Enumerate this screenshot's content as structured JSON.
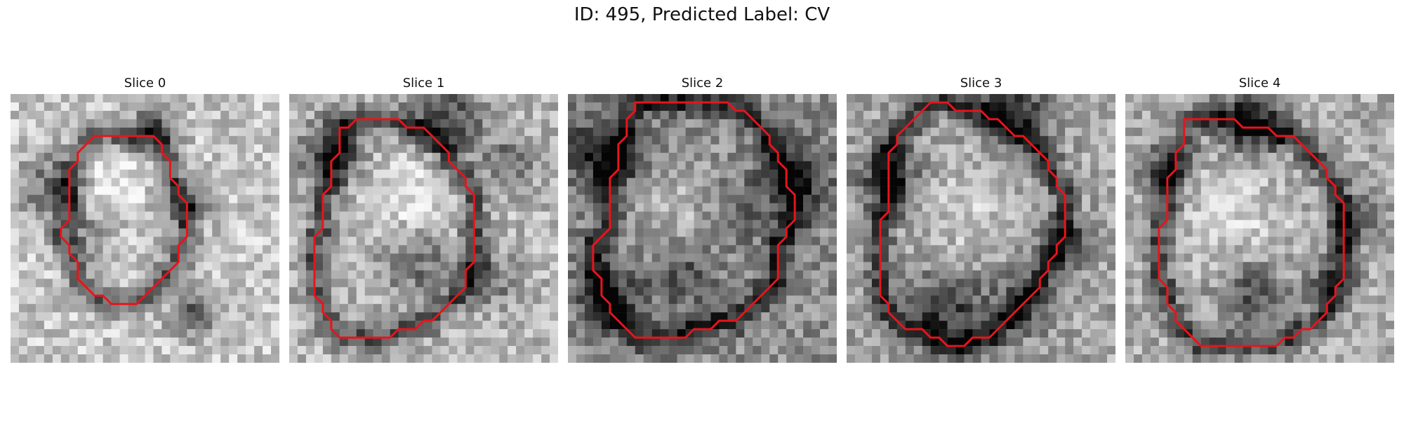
{
  "figure": {
    "title": "ID: 495, Predicted Label: CV"
  },
  "slices": [
    {
      "title": "Slice 0",
      "outline": [
        [
          14,
          5
        ],
        [
          17,
          5
        ],
        [
          18,
          6
        ],
        [
          18,
          7
        ],
        [
          19,
          8
        ],
        [
          19,
          10
        ],
        [
          20,
          11
        ],
        [
          20,
          12
        ],
        [
          21,
          13
        ],
        [
          21,
          17
        ],
        [
          20,
          18
        ],
        [
          20,
          20
        ],
        [
          19,
          21
        ],
        [
          18,
          22
        ],
        [
          17,
          23
        ],
        [
          16,
          24
        ],
        [
          15,
          25
        ],
        [
          14,
          25
        ],
        [
          13,
          25
        ],
        [
          12,
          25
        ],
        [
          11,
          24
        ],
        [
          10,
          24
        ],
        [
          9,
          23
        ],
        [
          8,
          22
        ],
        [
          8,
          20
        ],
        [
          7,
          19
        ],
        [
          7,
          18
        ],
        [
          6,
          17
        ],
        [
          6,
          16
        ],
        [
          7,
          15
        ],
        [
          7,
          9
        ],
        [
          8,
          8
        ],
        [
          8,
          7
        ],
        [
          9,
          6
        ],
        [
          10,
          5
        ]
      ],
      "blobs": [
        [
          5,
          11,
          4,
          0.35
        ],
        [
          17,
          4,
          3,
          0.35
        ],
        [
          21,
          13,
          3,
          0.3
        ],
        [
          22,
          26,
          3,
          0.4
        ],
        [
          10,
          17,
          3,
          0.2
        ],
        [
          12,
          10,
          4,
          -0.15
        ]
      ],
      "seed": 11,
      "base": 0.78
    },
    {
      "title": "Slice 1",
      "outline": [
        [
          8,
          3
        ],
        [
          13,
          3
        ],
        [
          14,
          4
        ],
        [
          16,
          4
        ],
        [
          17,
          5
        ],
        [
          18,
          6
        ],
        [
          19,
          7
        ],
        [
          19,
          8
        ],
        [
          20,
          9
        ],
        [
          21,
          10
        ],
        [
          21,
          11
        ],
        [
          22,
          12
        ],
        [
          22,
          20
        ],
        [
          21,
          21
        ],
        [
          21,
          23
        ],
        [
          20,
          24
        ],
        [
          19,
          25
        ],
        [
          18,
          26
        ],
        [
          17,
          27
        ],
        [
          16,
          27
        ],
        [
          15,
          28
        ],
        [
          13,
          28
        ],
        [
          12,
          29
        ],
        [
          8,
          29
        ],
        [
          7,
          29
        ],
        [
          6,
          29
        ],
        [
          5,
          28
        ],
        [
          5,
          27
        ],
        [
          4,
          26
        ],
        [
          4,
          25
        ],
        [
          3,
          24
        ],
        [
          3,
          17
        ],
        [
          4,
          16
        ],
        [
          4,
          12
        ],
        [
          5,
          11
        ],
        [
          5,
          8
        ],
        [
          6,
          7
        ],
        [
          6,
          4
        ],
        [
          7,
          4
        ]
      ],
      "blobs": [
        [
          5,
          7,
          4,
          0.4
        ],
        [
          19,
          3,
          4,
          0.45
        ],
        [
          26,
          8,
          3,
          0.3
        ],
        [
          15,
          20,
          4,
          0.3
        ],
        [
          24,
          22,
          3,
          0.3
        ],
        [
          14,
          12,
          5,
          -0.2
        ]
      ],
      "seed": 23,
      "base": 0.72
    },
    {
      "title": "Slice 2",
      "outline": [
        [
          8,
          1
        ],
        [
          19,
          1
        ],
        [
          20,
          2
        ],
        [
          21,
          2
        ],
        [
          22,
          3
        ],
        [
          23,
          4
        ],
        [
          24,
          5
        ],
        [
          24,
          6
        ],
        [
          25,
          7
        ],
        [
          25,
          8
        ],
        [
          26,
          9
        ],
        [
          26,
          11
        ],
        [
          27,
          12
        ],
        [
          27,
          15
        ],
        [
          26,
          16
        ],
        [
          26,
          17
        ],
        [
          25,
          18
        ],
        [
          25,
          22
        ],
        [
          24,
          23
        ],
        [
          23,
          24
        ],
        [
          22,
          25
        ],
        [
          21,
          26
        ],
        [
          20,
          27
        ],
        [
          18,
          27
        ],
        [
          17,
          28
        ],
        [
          15,
          28
        ],
        [
          14,
          29
        ],
        [
          13,
          29
        ],
        [
          10,
          29
        ],
        [
          9,
          29
        ],
        [
          8,
          29
        ],
        [
          7,
          28
        ],
        [
          6,
          27
        ],
        [
          5,
          26
        ],
        [
          5,
          25
        ],
        [
          4,
          24
        ],
        [
          4,
          22
        ],
        [
          3,
          21
        ],
        [
          3,
          18
        ],
        [
          4,
          17
        ],
        [
          5,
          16
        ],
        [
          5,
          10
        ],
        [
          6,
          9
        ],
        [
          6,
          6
        ],
        [
          7,
          5
        ],
        [
          7,
          3
        ],
        [
          8,
          2
        ]
      ],
      "blobs": [
        [
          4,
          7,
          4,
          0.45
        ],
        [
          27,
          10,
          4,
          0.4
        ],
        [
          14,
          21,
          4,
          0.3
        ],
        [
          20,
          14,
          4,
          0.2
        ],
        [
          5,
          24,
          4,
          0.35
        ],
        [
          14,
          15,
          6,
          -0.2
        ]
      ],
      "seed": 37,
      "base": 0.55
    },
    {
      "title": "Slice 3",
      "outline": [
        [
          10,
          1
        ],
        [
          12,
          1
        ],
        [
          13,
          2
        ],
        [
          16,
          2
        ],
        [
          17,
          3
        ],
        [
          18,
          3
        ],
        [
          19,
          4
        ],
        [
          20,
          5
        ],
        [
          21,
          5
        ],
        [
          22,
          6
        ],
        [
          23,
          7
        ],
        [
          24,
          8
        ],
        [
          24,
          9
        ],
        [
          25,
          10
        ],
        [
          25,
          11
        ],
        [
          26,
          12
        ],
        [
          26,
          17
        ],
        [
          25,
          18
        ],
        [
          25,
          19
        ],
        [
          24,
          20
        ],
        [
          24,
          21
        ],
        [
          23,
          22
        ],
        [
          23,
          23
        ],
        [
          22,
          24
        ],
        [
          21,
          25
        ],
        [
          20,
          26
        ],
        [
          19,
          27
        ],
        [
          18,
          28
        ],
        [
          17,
          29
        ],
        [
          15,
          29
        ],
        [
          14,
          30
        ],
        [
          13,
          30
        ],
        [
          12,
          30
        ],
        [
          11,
          29
        ],
        [
          10,
          29
        ],
        [
          9,
          28
        ],
        [
          7,
          28
        ],
        [
          6,
          27
        ],
        [
          5,
          26
        ],
        [
          5,
          25
        ],
        [
          4,
          24
        ],
        [
          4,
          22
        ],
        [
          4,
          16
        ],
        [
          4,
          15
        ],
        [
          5,
          14
        ],
        [
          5,
          7
        ],
        [
          6,
          6
        ],
        [
          6,
          5
        ],
        [
          7,
          4
        ],
        [
          8,
          3
        ],
        [
          9,
          2
        ]
      ],
      "blobs": [
        [
          5,
          10,
          4,
          0.4
        ],
        [
          20,
          2,
          4,
          0.45
        ],
        [
          26,
          18,
          3,
          0.35
        ],
        [
          12,
          26,
          5,
          0.4
        ],
        [
          21,
          25,
          4,
          0.3
        ],
        [
          14,
          14,
          6,
          -0.15
        ]
      ],
      "seed": 53,
      "base": 0.65
    },
    {
      "title": "Slice 4",
      "outline": [
        [
          7,
          3
        ],
        [
          13,
          3
        ],
        [
          14,
          4
        ],
        [
          17,
          4
        ],
        [
          18,
          5
        ],
        [
          20,
          5
        ],
        [
          21,
          6
        ],
        [
          22,
          7
        ],
        [
          23,
          8
        ],
        [
          24,
          9
        ],
        [
          24,
          10
        ],
        [
          25,
          11
        ],
        [
          25,
          12
        ],
        [
          26,
          13
        ],
        [
          26,
          22
        ],
        [
          25,
          23
        ],
        [
          25,
          24
        ],
        [
          24,
          25
        ],
        [
          24,
          26
        ],
        [
          23,
          27
        ],
        [
          22,
          28
        ],
        [
          21,
          28
        ],
        [
          20,
          29
        ],
        [
          19,
          29
        ],
        [
          18,
          30
        ],
        [
          9,
          30
        ],
        [
          8,
          29
        ],
        [
          7,
          28
        ],
        [
          6,
          27
        ],
        [
          6,
          26
        ],
        [
          5,
          25
        ],
        [
          5,
          23
        ],
        [
          4,
          22
        ],
        [
          4,
          16
        ],
        [
          5,
          15
        ],
        [
          5,
          10
        ],
        [
          6,
          9
        ],
        [
          6,
          7
        ],
        [
          7,
          6
        ],
        [
          7,
          4
        ]
      ],
      "blobs": [
        [
          15,
          3,
          4,
          0.45
        ],
        [
          4,
          9,
          3,
          0.35
        ],
        [
          27,
          15,
          3,
          0.35
        ],
        [
          15,
          24,
          4,
          0.35
        ],
        [
          24,
          22,
          3,
          0.3
        ],
        [
          13,
          15,
          6,
          -0.15
        ]
      ],
      "seed": 71,
      "base": 0.68
    }
  ]
}
